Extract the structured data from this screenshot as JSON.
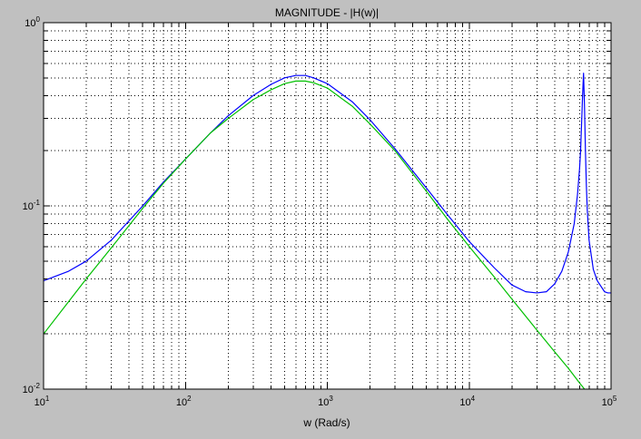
{
  "chart_data": {
    "type": "line",
    "title": "MAGNITUDE - |H(w)|",
    "xlabel": "w (Rad/s)",
    "ylabel": "",
    "xscale": "log",
    "yscale": "log",
    "xlim": [
      10,
      100000
    ],
    "ylim": [
      0.01,
      1
    ],
    "grid": true,
    "grid_style": "dotted",
    "x_ticks": [
      {
        "base": "10",
        "exp": "1",
        "value": 10
      },
      {
        "base": "10",
        "exp": "2",
        "value": 100
      },
      {
        "base": "10",
        "exp": "3",
        "value": 1000
      },
      {
        "base": "10",
        "exp": "4",
        "value": 10000
      },
      {
        "base": "10",
        "exp": "5",
        "value": 100000
      }
    ],
    "y_ticks": [
      {
        "base": "10",
        "exp": "-2",
        "value": 0.01
      },
      {
        "base": "10",
        "exp": "-1",
        "value": 0.1
      },
      {
        "base": "10",
        "exp": "0",
        "value": 1
      }
    ],
    "series": [
      {
        "color": "#0000ff",
        "x": [
          10,
          15,
          20,
          30,
          50,
          70,
          100,
          150,
          200,
          300,
          400,
          500,
          600,
          700,
          800,
          1000,
          1500,
          2000,
          3000,
          5000,
          7000,
          10000,
          15000,
          20000,
          25000,
          30000,
          35000,
          40000,
          45000,
          50000,
          55000,
          58000,
          60000,
          61000,
          62000,
          63000,
          64000,
          65000,
          66000,
          67000,
          68000,
          70000,
          75000,
          80000,
          90000,
          95000,
          100000
        ],
        "y": [
          0.039,
          0.044,
          0.05,
          0.065,
          0.1,
          0.135,
          0.18,
          0.25,
          0.31,
          0.4,
          0.46,
          0.5,
          0.515,
          0.515,
          0.5,
          0.465,
          0.37,
          0.295,
          0.205,
          0.125,
          0.09,
          0.064,
          0.046,
          0.037,
          0.034,
          0.0335,
          0.034,
          0.0375,
          0.044,
          0.056,
          0.08,
          0.115,
          0.16,
          0.2,
          0.28,
          0.4,
          0.53,
          0.35,
          0.2,
          0.13,
          0.095,
          0.065,
          0.045,
          0.039,
          0.034,
          0.0335,
          0.0335
        ]
      },
      {
        "color": "#00c000",
        "x": [
          10,
          15,
          20,
          30,
          50,
          70,
          100,
          150,
          200,
          300,
          400,
          500,
          600,
          700,
          800,
          1000,
          1500,
          2000,
          3000,
          5000,
          7000,
          10000,
          15000,
          20000,
          30000,
          40000,
          50000,
          60000,
          65000
        ],
        "y": [
          0.02,
          0.03,
          0.04,
          0.059,
          0.097,
          0.133,
          0.18,
          0.25,
          0.3,
          0.38,
          0.43,
          0.465,
          0.48,
          0.48,
          0.47,
          0.44,
          0.35,
          0.28,
          0.2,
          0.12,
          0.085,
          0.06,
          0.041,
          0.031,
          0.021,
          0.016,
          0.013,
          0.0108,
          0.01
        ]
      }
    ]
  }
}
